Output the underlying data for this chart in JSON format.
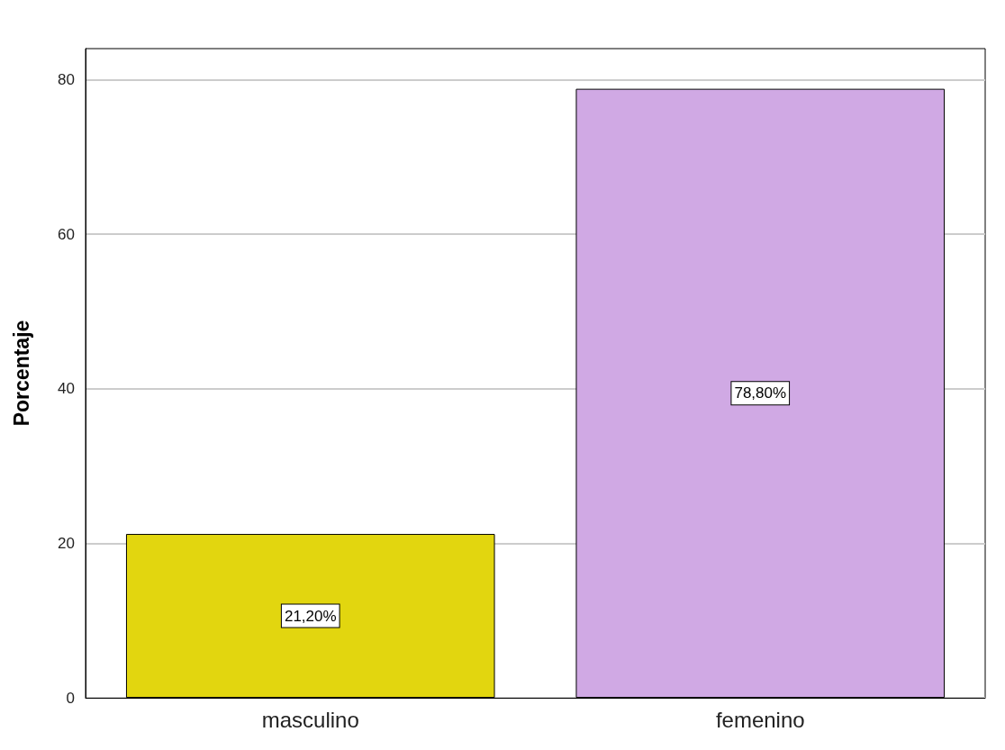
{
  "chart_data": {
    "type": "bar",
    "ylabel": "Porcentaje",
    "categories": [
      "masculino",
      "femenino"
    ],
    "values": [
      21.2,
      78.8
    ],
    "colors": [
      "#e2d60f",
      "#d0a9e4"
    ],
    "value_labels": [
      "21,20%",
      "78,80%"
    ],
    "ylim": [
      0,
      84
    ],
    "yticks": [
      0,
      20,
      40,
      60,
      80
    ],
    "grid": "y"
  }
}
